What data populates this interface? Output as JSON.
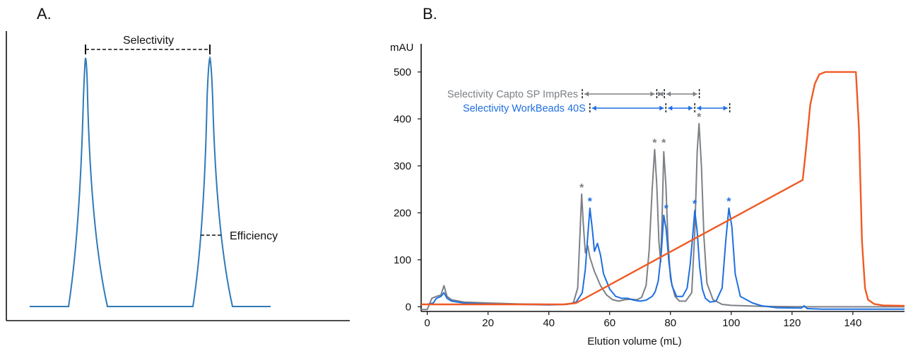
{
  "panels": {
    "a_label": "A.",
    "b_label": "B."
  },
  "schematic": {
    "selectivity_label": "Selectivity",
    "efficiency_label": "Efficiency",
    "line_color": "#2f7ab8"
  },
  "chart_data": [
    {
      "type": "line",
      "ylabel": "mAU",
      "xlabel": "Elution volume (mL)",
      "xlim": [
        -2,
        157
      ],
      "ylim": [
        -10,
        560
      ],
      "xticks": [
        0,
        20,
        40,
        60,
        80,
        100,
        120,
        140
      ],
      "yticks": [
        0,
        100,
        200,
        300,
        400,
        500
      ],
      "grid": false,
      "series": [
        {
          "color": "#7d8185",
          "x": [
            -2,
            0,
            1.5,
            3,
            4.5,
            5.5,
            6.5,
            8,
            12,
            20,
            30,
            40,
            45,
            48,
            49.5,
            50.2,
            50.8,
            51.3,
            52,
            52.8,
            53.5,
            55,
            57,
            59,
            61,
            63,
            65,
            67,
            69,
            70.5,
            72,
            73,
            74,
            74.8,
            75.5,
            76.2,
            76.8,
            77.3,
            77.8,
            78.5,
            79.2,
            80,
            81.5,
            83,
            85,
            87,
            88,
            88.8,
            89.4,
            90.2,
            91,
            92,
            94,
            97,
            100,
            110,
            125,
            135,
            145,
            157
          ],
          "y": [
            -6,
            -6,
            18,
            22,
            25,
            45,
            22,
            15,
            10,
            8,
            6,
            5,
            5,
            7,
            40,
            150,
            240,
            180,
            115,
            130,
            105,
            75,
            45,
            25,
            15,
            12,
            15,
            16,
            15,
            20,
            45,
            120,
            250,
            335,
            260,
            140,
            95,
            200,
            330,
            260,
            140,
            60,
            22,
            12,
            12,
            30,
            160,
            330,
            390,
            300,
            150,
            50,
            15,
            5,
            3,
            1,
            0,
            0,
            0,
            0
          ]
        },
        {
          "color": "#1f6fe0",
          "x": [
            -2,
            0,
            2,
            3,
            4.5,
            5.5,
            6.5,
            8,
            12,
            20,
            30,
            40,
            46,
            49,
            51,
            52,
            52.8,
            53.5,
            54.3,
            55,
            56,
            57,
            58,
            60,
            62,
            64,
            66,
            68,
            70,
            72,
            74,
            75,
            76,
            77,
            77.8,
            78.6,
            79.5,
            80.5,
            82,
            84,
            85.5,
            86.5,
            87.3,
            88,
            88.8,
            89.6,
            90.5,
            91.5,
            93,
            95,
            97,
            98.2,
            99.2,
            100.2,
            101.3,
            103,
            105,
            107,
            110,
            115,
            123,
            124,
            125,
            130,
            140,
            157
          ],
          "y": [
            5,
            5,
            8,
            18,
            22,
            30,
            18,
            12,
            8,
            6,
            5,
            4,
            5,
            10,
            30,
            80,
            150,
            210,
            165,
            118,
            135,
            110,
            70,
            38,
            22,
            18,
            18,
            14,
            12,
            14,
            22,
            32,
            55,
            115,
            195,
            165,
            95,
            45,
            22,
            22,
            40,
            90,
            150,
            205,
            160,
            85,
            38,
            18,
            10,
            12,
            40,
            140,
            210,
            170,
            70,
            22,
            15,
            8,
            2,
            -2,
            -3,
            2,
            -4,
            -5,
            -5,
            -5
          ]
        },
        {
          "color": "#f05a24",
          "x": [
            -2,
            0,
            45,
            49,
            123.5,
            124.5,
            126,
            127.5,
            129,
            131,
            134,
            141,
            142,
            143,
            144,
            145,
            147,
            150,
            157
          ],
          "y": [
            5,
            5,
            5,
            8,
            270,
            330,
            430,
            475,
            495,
            500,
            500,
            500,
            380,
            140,
            40,
            15,
            6,
            3,
            2
          ]
        }
      ],
      "asterisks": [
        {
          "x": 50.8,
          "y": 240,
          "color": "#7d8185",
          "text": "*"
        },
        {
          "x": 74.8,
          "y": 335,
          "color": "#7d8185",
          "text": "*"
        },
        {
          "x": 77.8,
          "y": 335,
          "color": "#7d8185",
          "text": "*"
        },
        {
          "x": 89.4,
          "y": 390,
          "color": "#7d8185",
          "text": "*"
        },
        {
          "x": 53.5,
          "y": 210,
          "color": "#1f6fe0",
          "text": "*"
        },
        {
          "x": 78.6,
          "y": 195,
          "color": "#1f6fe0",
          "text": "*"
        },
        {
          "x": 88.0,
          "y": 205,
          "color": "#1f6fe0",
          "text": "*"
        },
        {
          "x": 99.2,
          "y": 210,
          "color": "#1f6fe0",
          "text": "*"
        }
      ],
      "selectivity_rows": [
        {
          "label": "Selectivity Capto SP ImpRes",
          "color": "#7d8185",
          "y": 453,
          "x_points": [
            51,
            75.5,
            78,
            89.5
          ]
        },
        {
          "label": "Selectivity WorkBeads 40S",
          "color": "#1f6fe0",
          "y": 423,
          "x_points": [
            53.5,
            78.5,
            88,
            99.5
          ]
        }
      ]
    }
  ]
}
